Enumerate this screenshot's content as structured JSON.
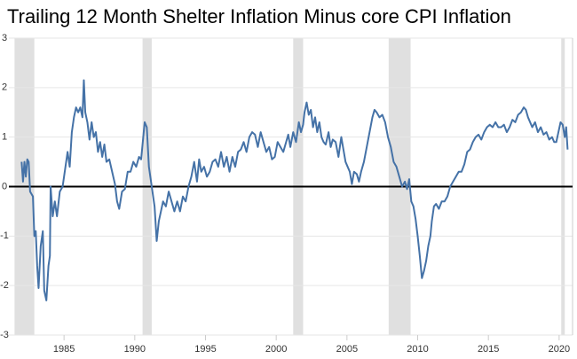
{
  "chart_data": {
    "type": "line",
    "title": "Trailing 12 Month Shelter Inflation Minus core CPI Inflation",
    "xlim": [
      1981.1,
      2020.95
    ],
    "xticks": [
      1985,
      1990,
      1995,
      2000,
      2005,
      2010,
      2015,
      2020
    ],
    "ylim": [
      -3,
      3
    ],
    "yticks": [
      -3,
      -2,
      -1,
      0,
      1,
      2,
      3
    ],
    "grid": true,
    "reference_line": 0,
    "shaded_periods": [
      [
        1981.5,
        1982.9
      ],
      [
        1990.55,
        1991.2
      ],
      [
        2001.2,
        2001.9
      ],
      [
        2007.95,
        2009.5
      ],
      [
        2020.15,
        2020.4
      ]
    ],
    "shade_color": "#e0e0e0",
    "series": [
      {
        "color": "#4572a7",
        "x": [
          1982.0,
          1982.1,
          1982.2,
          1982.3,
          1982.4,
          1982.5,
          1982.6,
          1982.8,
          1982.9,
          1983.0,
          1983.1,
          1983.2,
          1983.35,
          1983.5,
          1983.6,
          1983.75,
          1983.9,
          1984.0,
          1984.05,
          1984.2,
          1984.35,
          1984.5,
          1984.7,
          1984.9,
          1985.1,
          1985.25,
          1985.4,
          1985.55,
          1985.7,
          1985.85,
          1986.0,
          1986.15,
          1986.3,
          1986.4,
          1986.5,
          1986.65,
          1986.8,
          1986.95,
          1987.1,
          1987.25,
          1987.4,
          1987.55,
          1987.7,
          1987.85,
          1988.0,
          1988.2,
          1988.4,
          1988.6,
          1988.75,
          1988.9,
          1989.1,
          1989.3,
          1989.5,
          1989.7,
          1989.9,
          1990.1,
          1990.3,
          1990.45,
          1990.6,
          1990.7,
          1990.85,
          1991.0,
          1991.1,
          1991.25,
          1991.4,
          1991.55,
          1991.7,
          1991.85,
          1992.0,
          1992.2,
          1992.4,
          1992.6,
          1992.8,
          1993.0,
          1993.2,
          1993.4,
          1993.6,
          1993.8,
          1994.0,
          1994.2,
          1994.4,
          1994.55,
          1994.7,
          1994.9,
          1995.1,
          1995.3,
          1995.5,
          1995.7,
          1995.9,
          1996.1,
          1996.3,
          1996.5,
          1996.7,
          1996.9,
          1997.1,
          1997.3,
          1997.5,
          1997.7,
          1997.9,
          1998.1,
          1998.3,
          1998.5,
          1998.7,
          1998.9,
          1999.1,
          1999.3,
          1999.5,
          1999.7,
          1999.9,
          2000.1,
          2000.3,
          2000.5,
          2000.7,
          2000.85,
          2001.0,
          2001.2,
          2001.4,
          2001.6,
          2001.75,
          2001.9,
          2002.0,
          2002.15,
          2002.3,
          2002.45,
          2002.6,
          2002.75,
          2002.9,
          2003.05,
          2003.2,
          2003.35,
          2003.5,
          2003.7,
          2003.85,
          2004.0,
          2004.2,
          2004.4,
          2004.6,
          2004.75,
          2004.9,
          2005.05,
          2005.2,
          2005.35,
          2005.5,
          2005.7,
          2005.85,
          2006.0,
          2006.2,
          2006.4,
          2006.6,
          2006.8,
          2006.95,
          2007.1,
          2007.3,
          2007.5,
          2007.7,
          2007.9,
          2008.1,
          2008.3,
          2008.5,
          2008.7,
          2008.9,
          2009.1,
          2009.25,
          2009.4,
          2009.55,
          2009.7,
          2009.85,
          2010.0,
          2010.15,
          2010.3,
          2010.45,
          2010.6,
          2010.75,
          2010.9,
          2011.0,
          2011.15,
          2011.3,
          2011.5,
          2011.7,
          2011.9,
          2012.1,
          2012.3,
          2012.5,
          2012.7,
          2012.9,
          2013.1,
          2013.3,
          2013.5,
          2013.7,
          2013.9,
          2014.1,
          2014.3,
          2014.5,
          2014.7,
          2014.9,
          2015.1,
          2015.3,
          2015.5,
          2015.7,
          2015.9,
          2016.1,
          2016.3,
          2016.5,
          2016.7,
          2016.9,
          2017.1,
          2017.3,
          2017.5,
          2017.65,
          2017.8,
          2017.95,
          2018.1,
          2018.3,
          2018.5,
          2018.7,
          2018.9,
          2019.1,
          2019.3,
          2019.5,
          2019.65,
          2019.8,
          2019.95,
          2020.1,
          2020.25,
          2020.4,
          2020.5,
          2020.6
        ],
        "values": [
          0.5,
          0.1,
          0.5,
          0.2,
          0.55,
          0.5,
          -0.1,
          -0.2,
          -1.0,
          -0.9,
          -1.6,
          -2.05,
          -1.2,
          -0.9,
          -2.1,
          -2.3,
          -1.6,
          -1.4,
          0.0,
          -0.6,
          -0.3,
          -0.6,
          -0.1,
          0.0,
          0.4,
          0.7,
          0.4,
          1.1,
          1.4,
          1.6,
          1.5,
          1.6,
          1.4,
          2.15,
          1.5,
          1.3,
          0.95,
          1.3,
          1.0,
          1.1,
          0.7,
          0.9,
          0.6,
          0.85,
          0.5,
          0.55,
          0.3,
          0.05,
          -0.3,
          -0.45,
          -0.1,
          -0.05,
          0.3,
          0.3,
          0.5,
          0.4,
          0.6,
          0.55,
          1.0,
          1.3,
          1.2,
          0.4,
          0.2,
          -0.1,
          -0.4,
          -1.1,
          -0.7,
          -0.5,
          -0.3,
          -0.4,
          -0.1,
          -0.3,
          -0.5,
          -0.3,
          -0.5,
          -0.2,
          -0.3,
          0.0,
          0.2,
          0.5,
          0.1,
          0.55,
          0.3,
          0.4,
          0.2,
          0.3,
          0.5,
          0.55,
          0.4,
          0.7,
          0.4,
          0.6,
          0.3,
          0.6,
          0.4,
          0.7,
          0.75,
          0.9,
          0.7,
          1.0,
          1.1,
          1.05,
          0.8,
          1.1,
          0.9,
          0.7,
          0.8,
          0.55,
          0.6,
          0.9,
          0.8,
          0.7,
          0.9,
          1.05,
          0.8,
          1.1,
          0.9,
          1.3,
          1.1,
          1.25,
          1.5,
          1.7,
          1.45,
          1.55,
          1.2,
          1.4,
          1.1,
          1.3,
          1.0,
          0.9,
          0.85,
          1.1,
          0.8,
          0.95,
          0.9,
          0.6,
          1.0,
          0.75,
          0.5,
          0.4,
          0.3,
          0.05,
          0.3,
          0.25,
          0.1,
          0.3,
          0.5,
          0.8,
          1.1,
          1.4,
          1.55,
          1.5,
          1.4,
          1.45,
          1.3,
          1.0,
          0.8,
          0.5,
          0.4,
          0.2,
          0.0,
          0.1,
          -0.05,
          0.15,
          -0.3,
          -0.4,
          -0.65,
          -1.0,
          -1.4,
          -1.85,
          -1.7,
          -1.5,
          -1.2,
          -1.0,
          -0.7,
          -0.4,
          -0.35,
          -0.45,
          -0.3,
          -0.3,
          -0.2,
          0.0,
          0.1,
          0.2,
          0.3,
          0.3,
          0.45,
          0.7,
          0.75,
          0.9,
          1.0,
          1.05,
          0.95,
          1.1,
          1.2,
          1.25,
          1.2,
          1.3,
          1.2,
          1.2,
          1.25,
          1.1,
          1.2,
          1.35,
          1.3,
          1.45,
          1.5,
          1.6,
          1.55,
          1.4,
          1.3,
          1.2,
          1.3,
          1.1,
          1.2,
          1.05,
          1.1,
          0.95,
          1.0,
          0.9,
          0.9,
          1.1,
          1.3,
          1.25,
          1.0,
          1.2,
          0.75
        ]
      }
    ]
  }
}
